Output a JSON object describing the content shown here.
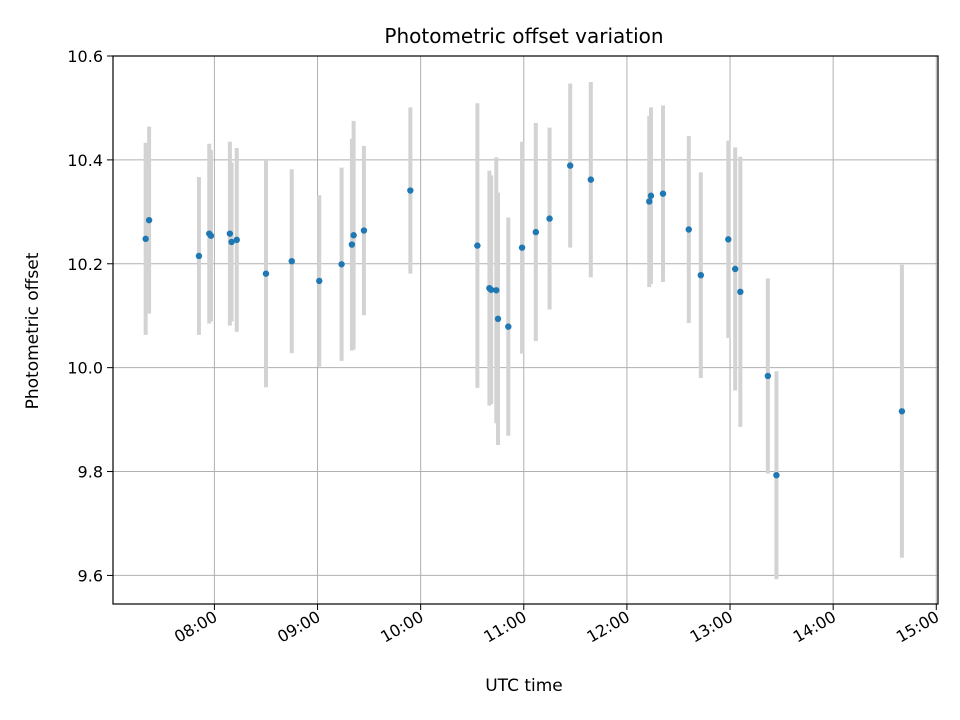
{
  "chart_data": {
    "type": "scatter",
    "title": "Photometric offset variation",
    "xlabel": "UTC time",
    "ylabel": "Photometric offset",
    "x_ticks": [
      "08:00",
      "09:00",
      "10:00",
      "11:00",
      "12:00",
      "13:00",
      "14:00",
      "15:00"
    ],
    "y_ticks": [
      "9.6",
      "9.8",
      "10.0",
      "10.2",
      "10.4",
      "10.6"
    ],
    "xlim": [
      "07:01",
      "15:01"
    ],
    "ylim": [
      9.545,
      10.6
    ],
    "grid": true,
    "colors": {
      "points": "#1f77b4",
      "errorbars": "#d3d3d3",
      "grid": "#b0b0b0"
    },
    "points": [
      {
        "t": "07:20",
        "y": 10.248,
        "yerr": 0.185
      },
      {
        "t": "07:22",
        "y": 10.284,
        "yerr": 0.18
      },
      {
        "t": "07:51",
        "y": 10.215,
        "yerr": 0.152
      },
      {
        "t": "07:57",
        "y": 10.258,
        "yerr": 0.173
      },
      {
        "t": "07:58",
        "y": 10.254,
        "yerr": 0.165
      },
      {
        "t": "08:09",
        "y": 10.258,
        "yerr": 0.177
      },
      {
        "t": "08:10",
        "y": 10.242,
        "yerr": 0.153
      },
      {
        "t": "08:13",
        "y": 10.246,
        "yerr": 0.177
      },
      {
        "t": "08:30",
        "y": 10.181,
        "yerr": 0.219
      },
      {
        "t": "08:45",
        "y": 10.205,
        "yerr": 0.177
      },
      {
        "t": "09:01",
        "y": 10.167,
        "yerr": 0.165
      },
      {
        "t": "09:14",
        "y": 10.199,
        "yerr": 0.186
      },
      {
        "t": "09:20",
        "y": 10.237,
        "yerr": 0.204
      },
      {
        "t": "09:21",
        "y": 10.255,
        "yerr": 0.22
      },
      {
        "t": "09:27",
        "y": 10.264,
        "yerr": 0.163
      },
      {
        "t": "09:54",
        "y": 10.341,
        "yerr": 0.16
      },
      {
        "t": "10:33",
        "y": 10.235,
        "yerr": 0.274
      },
      {
        "t": "10:40",
        "y": 10.153,
        "yerr": 0.226
      },
      {
        "t": "10:41",
        "y": 10.15,
        "yerr": 0.22
      },
      {
        "t": "10:44",
        "y": 10.149,
        "yerr": 0.256
      },
      {
        "t": "10:45",
        "y": 10.094,
        "yerr": 0.243
      },
      {
        "t": "10:51",
        "y": 10.079,
        "yerr": 0.21
      },
      {
        "t": "10:59",
        "y": 10.231,
        "yerr": 0.204
      },
      {
        "t": "11:07",
        "y": 10.261,
        "yerr": 0.21
      },
      {
        "t": "11:15",
        "y": 10.287,
        "yerr": 0.175
      },
      {
        "t": "11:27",
        "y": 10.389,
        "yerr": 0.158
      },
      {
        "t": "11:39",
        "y": 10.362,
        "yerr": 0.188
      },
      {
        "t": "12:13",
        "y": 10.32,
        "yerr": 0.165
      },
      {
        "t": "12:14",
        "y": 10.331,
        "yerr": 0.17
      },
      {
        "t": "12:21",
        "y": 10.335,
        "yerr": 0.17
      },
      {
        "t": "12:36",
        "y": 10.266,
        "yerr": 0.18
      },
      {
        "t": "12:43",
        "y": 10.178,
        "yerr": 0.198
      },
      {
        "t": "12:59",
        "y": 10.247,
        "yerr": 0.19
      },
      {
        "t": "13:03",
        "y": 10.19,
        "yerr": 0.234
      },
      {
        "t": "13:06",
        "y": 10.146,
        "yerr": 0.26
      },
      {
        "t": "13:22",
        "y": 9.984,
        "yerr": 0.188
      },
      {
        "t": "13:27",
        "y": 9.793,
        "yerr": 0.2
      },
      {
        "t": "14:40",
        "y": 9.916,
        "yerr": 0.282
      }
    ]
  }
}
